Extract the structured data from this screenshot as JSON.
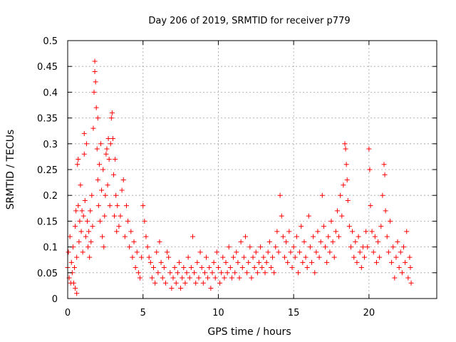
{
  "chart_data": {
    "type": "scatter",
    "title": "Day 206 of 2019, SRMTID for receiver p779",
    "xlabel": "GPS time / hours",
    "ylabel": "SRMTID / TECUs",
    "xlim": [
      0,
      24.5
    ],
    "ylim": [
      0,
      0.5
    ],
    "x_ticks": [
      0,
      5,
      10,
      15,
      20
    ],
    "x_tick_labels": [
      "0",
      "5",
      "10",
      "15",
      "20"
    ],
    "y_ticks": [
      0,
      0.05,
      0.1,
      0.15,
      0.2,
      0.25,
      0.3,
      0.35,
      0.4,
      0.45,
      0.5
    ],
    "y_tick_labels": [
      "0",
      "0.05",
      "0.1",
      "0.15",
      "0.2",
      "0.25",
      "0.3",
      "0.35",
      "0.4",
      "0.45",
      "0.5"
    ],
    "grid": true,
    "marker": "+",
    "color": "#ff0000",
    "series": [
      {
        "name": "SRMTID",
        "points": [
          [
            0.0,
            0.06
          ],
          [
            0.05,
            0.09
          ],
          [
            0.1,
            0.04
          ],
          [
            0.15,
            0.12
          ],
          [
            0.2,
            0.03
          ],
          [
            0.25,
            0.07
          ],
          [
            0.3,
            0.05
          ],
          [
            0.35,
            0.1
          ],
          [
            0.4,
            0.03
          ],
          [
            0.45,
            0.06
          ],
          [
            0.5,
            0.14
          ],
          [
            0.5,
            0.02
          ],
          [
            0.55,
            0.17
          ],
          [
            0.6,
            0.08
          ],
          [
            0.6,
            0.01
          ],
          [
            0.65,
            0.26
          ],
          [
            0.7,
            0.18
          ],
          [
            0.7,
            0.27
          ],
          [
            0.75,
            0.11
          ],
          [
            0.8,
            0.15
          ],
          [
            0.85,
            0.22
          ],
          [
            0.9,
            0.13
          ],
          [
            0.95,
            0.17
          ],
          [
            1.0,
            0.09
          ],
          [
            1.05,
            0.16
          ],
          [
            1.1,
            0.28
          ],
          [
            1.1,
            0.32
          ],
          [
            1.15,
            0.19
          ],
          [
            1.2,
            0.12
          ],
          [
            1.25,
            0.3
          ],
          [
            1.3,
            0.15
          ],
          [
            1.35,
            0.1
          ],
          [
            1.4,
            0.13
          ],
          [
            1.45,
            0.08
          ],
          [
            1.5,
            0.17
          ],
          [
            1.55,
            0.11
          ],
          [
            1.6,
            0.2
          ],
          [
            1.65,
            0.14
          ],
          [
            1.7,
            0.33
          ],
          [
            1.75,
            0.4
          ],
          [
            1.8,
            0.44
          ],
          [
            1.8,
            0.46
          ],
          [
            1.85,
            0.42
          ],
          [
            1.9,
            0.37
          ],
          [
            1.95,
            0.29
          ],
          [
            2.0,
            0.23
          ],
          [
            2.0,
            0.35
          ],
          [
            2.05,
            0.18
          ],
          [
            2.1,
            0.26
          ],
          [
            2.15,
            0.15
          ],
          [
            2.2,
            0.3
          ],
          [
            2.25,
            0.21
          ],
          [
            2.3,
            0.12
          ],
          [
            2.35,
            0.25
          ],
          [
            2.4,
            0.1
          ],
          [
            2.45,
            0.16
          ],
          [
            2.5,
            0.2
          ],
          [
            2.55,
            0.28
          ],
          [
            2.6,
            0.29
          ],
          [
            2.65,
            0.22
          ],
          [
            2.7,
            0.31
          ],
          [
            2.75,
            0.27
          ],
          [
            2.8,
            0.18
          ],
          [
            2.85,
            0.3
          ],
          [
            2.9,
            0.35
          ],
          [
            2.95,
            0.36
          ],
          [
            3.0,
            0.31
          ],
          [
            3.05,
            0.24
          ],
          [
            3.1,
            0.16
          ],
          [
            3.15,
            0.27
          ],
          [
            3.2,
            0.2
          ],
          [
            3.25,
            0.13
          ],
          [
            3.3,
            0.18
          ],
          [
            3.4,
            0.14
          ],
          [
            3.5,
            0.16
          ],
          [
            3.6,
            0.21
          ],
          [
            3.7,
            0.23
          ],
          [
            3.8,
            0.12
          ],
          [
            3.9,
            0.18
          ],
          [
            4.0,
            0.15
          ],
          [
            4.1,
            0.1
          ],
          [
            4.2,
            0.13
          ],
          [
            4.3,
            0.08
          ],
          [
            4.4,
            0.11
          ],
          [
            4.5,
            0.06
          ],
          [
            4.6,
            0.09
          ],
          [
            4.7,
            0.05
          ],
          [
            4.8,
            0.04
          ],
          [
            4.9,
            0.08
          ],
          [
            5.0,
            0.18
          ],
          [
            5.1,
            0.15
          ],
          [
            5.2,
            0.12
          ],
          [
            5.3,
            0.1
          ],
          [
            5.4,
            0.08
          ],
          [
            5.5,
            0.07
          ],
          [
            5.6,
            0.04
          ],
          [
            5.7,
            0.06
          ],
          [
            5.8,
            0.03
          ],
          [
            5.9,
            0.09
          ],
          [
            6.0,
            0.05
          ],
          [
            6.1,
            0.11
          ],
          [
            6.2,
            0.07
          ],
          [
            6.3,
            0.04
          ],
          [
            6.4,
            0.06
          ],
          [
            6.5,
            0.03
          ],
          [
            6.6,
            0.09
          ],
          [
            6.7,
            0.08
          ],
          [
            6.8,
            0.05
          ],
          [
            6.9,
            0.02
          ],
          [
            7.0,
            0.04
          ],
          [
            7.1,
            0.06
          ],
          [
            7.2,
            0.03
          ],
          [
            7.3,
            0.05
          ],
          [
            7.4,
            0.07
          ],
          [
            7.5,
            0.02
          ],
          [
            7.6,
            0.04
          ],
          [
            7.7,
            0.06
          ],
          [
            7.8,
            0.03
          ],
          [
            7.9,
            0.05
          ],
          [
            8.0,
            0.08
          ],
          [
            8.1,
            0.04
          ],
          [
            8.2,
            0.06
          ],
          [
            8.3,
            0.12
          ],
          [
            8.4,
            0.05
          ],
          [
            8.5,
            0.03
          ],
          [
            8.6,
            0.07
          ],
          [
            8.7,
            0.04
          ],
          [
            8.8,
            0.09
          ],
          [
            8.9,
            0.06
          ],
          [
            9.0,
            0.03
          ],
          [
            9.1,
            0.05
          ],
          [
            9.2,
            0.08
          ],
          [
            9.3,
            0.04
          ],
          [
            9.4,
            0.06
          ],
          [
            9.5,
            0.02
          ],
          [
            9.6,
            0.05
          ],
          [
            9.7,
            0.07
          ],
          [
            9.8,
            0.04
          ],
          [
            9.9,
            0.09
          ],
          [
            10.0,
            0.06
          ],
          [
            10.1,
            0.03
          ],
          [
            10.2,
            0.05
          ],
          [
            10.3,
            0.08
          ],
          [
            10.4,
            0.04
          ],
          [
            10.5,
            0.07
          ],
          [
            10.6,
            0.05
          ],
          [
            10.7,
            0.1
          ],
          [
            10.8,
            0.06
          ],
          [
            10.9,
            0.04
          ],
          [
            11.0,
            0.08
          ],
          [
            11.1,
            0.05
          ],
          [
            11.2,
            0.09
          ],
          [
            11.3,
            0.07
          ],
          [
            11.4,
            0.04
          ],
          [
            11.5,
            0.11
          ],
          [
            11.6,
            0.06
          ],
          [
            11.7,
            0.08
          ],
          [
            11.8,
            0.12
          ],
          [
            11.9,
            0.05
          ],
          [
            12.0,
            0.07
          ],
          [
            12.1,
            0.1
          ],
          [
            12.2,
            0.04
          ],
          [
            12.3,
            0.08
          ],
          [
            12.4,
            0.06
          ],
          [
            12.5,
            0.09
          ],
          [
            12.6,
            0.05
          ],
          [
            12.7,
            0.07
          ],
          [
            12.8,
            0.1
          ],
          [
            12.9,
            0.06
          ],
          [
            13.0,
            0.08
          ],
          [
            13.1,
            0.05
          ],
          [
            13.2,
            0.07
          ],
          [
            13.3,
            0.09
          ],
          [
            13.4,
            0.11
          ],
          [
            13.5,
            0.06
          ],
          [
            13.6,
            0.08
          ],
          [
            13.7,
            0.05
          ],
          [
            13.8,
            0.1
          ],
          [
            13.9,
            0.13
          ],
          [
            14.0,
            0.09
          ],
          [
            14.1,
            0.2
          ],
          [
            14.2,
            0.16
          ],
          [
            14.3,
            0.12
          ],
          [
            14.4,
            0.08
          ],
          [
            14.5,
            0.11
          ],
          [
            14.6,
            0.07
          ],
          [
            14.7,
            0.13
          ],
          [
            14.8,
            0.09
          ],
          [
            14.9,
            0.06
          ],
          [
            15.0,
            0.1
          ],
          [
            15.1,
            0.08
          ],
          [
            15.2,
            0.12
          ],
          [
            15.3,
            0.05
          ],
          [
            15.4,
            0.09
          ],
          [
            15.5,
            0.14
          ],
          [
            15.6,
            0.07
          ],
          [
            15.7,
            0.11
          ],
          [
            15.8,
            0.08
          ],
          [
            15.9,
            0.06
          ],
          [
            16.0,
            0.16
          ],
          [
            16.1,
            0.1
          ],
          [
            16.2,
            0.07
          ],
          [
            16.3,
            0.12
          ],
          [
            16.4,
            0.05
          ],
          [
            16.5,
            0.09
          ],
          [
            16.6,
            0.13
          ],
          [
            16.7,
            0.08
          ],
          [
            16.8,
            0.11
          ],
          [
            16.9,
            0.2
          ],
          [
            17.0,
            0.14
          ],
          [
            17.1,
            0.1
          ],
          [
            17.2,
            0.07
          ],
          [
            17.3,
            0.12
          ],
          [
            17.4,
            0.09
          ],
          [
            17.5,
            0.15
          ],
          [
            17.6,
            0.11
          ],
          [
            17.7,
            0.08
          ],
          [
            17.8,
            0.13
          ],
          [
            17.9,
            0.17
          ],
          [
            18.0,
            0.12
          ],
          [
            18.1,
            0.2
          ],
          [
            18.2,
            0.16
          ],
          [
            18.3,
            0.22
          ],
          [
            18.4,
            0.3
          ],
          [
            18.45,
            0.29
          ],
          [
            18.5,
            0.26
          ],
          [
            18.55,
            0.23
          ],
          [
            18.6,
            0.19
          ],
          [
            18.7,
            0.14
          ],
          [
            18.8,
            0.1
          ],
          [
            18.9,
            0.13
          ],
          [
            19.0,
            0.08
          ],
          [
            19.1,
            0.11
          ],
          [
            19.2,
            0.07
          ],
          [
            19.3,
            0.12
          ],
          [
            19.4,
            0.09
          ],
          [
            19.5,
            0.06
          ],
          [
            19.6,
            0.1
          ],
          [
            19.7,
            0.08
          ],
          [
            19.8,
            0.13
          ],
          [
            19.9,
            0.1
          ],
          [
            20.0,
            0.29
          ],
          [
            20.05,
            0.25
          ],
          [
            20.1,
            0.18
          ],
          [
            20.2,
            0.13
          ],
          [
            20.3,
            0.09
          ],
          [
            20.4,
            0.12
          ],
          [
            20.5,
            0.07
          ],
          [
            20.6,
            0.11
          ],
          [
            20.7,
            0.08
          ],
          [
            20.8,
            0.14
          ],
          [
            20.9,
            0.2
          ],
          [
            21.0,
            0.26
          ],
          [
            21.05,
            0.24
          ],
          [
            21.1,
            0.17
          ],
          [
            21.2,
            0.12
          ],
          [
            21.3,
            0.09
          ],
          [
            21.4,
            0.15
          ],
          [
            21.5,
            0.07
          ],
          [
            21.6,
            0.1
          ],
          [
            21.7,
            0.04
          ],
          [
            21.8,
            0.08
          ],
          [
            21.9,
            0.11
          ],
          [
            22.0,
            0.06
          ],
          [
            22.1,
            0.09
          ],
          [
            22.2,
            0.05
          ],
          [
            22.3,
            0.1
          ],
          [
            22.4,
            0.07
          ],
          [
            22.5,
            0.13
          ],
          [
            22.6,
            0.04
          ],
          [
            22.7,
            0.08
          ],
          [
            22.75,
            0.06
          ],
          [
            22.8,
            0.03
          ]
        ]
      }
    ]
  }
}
